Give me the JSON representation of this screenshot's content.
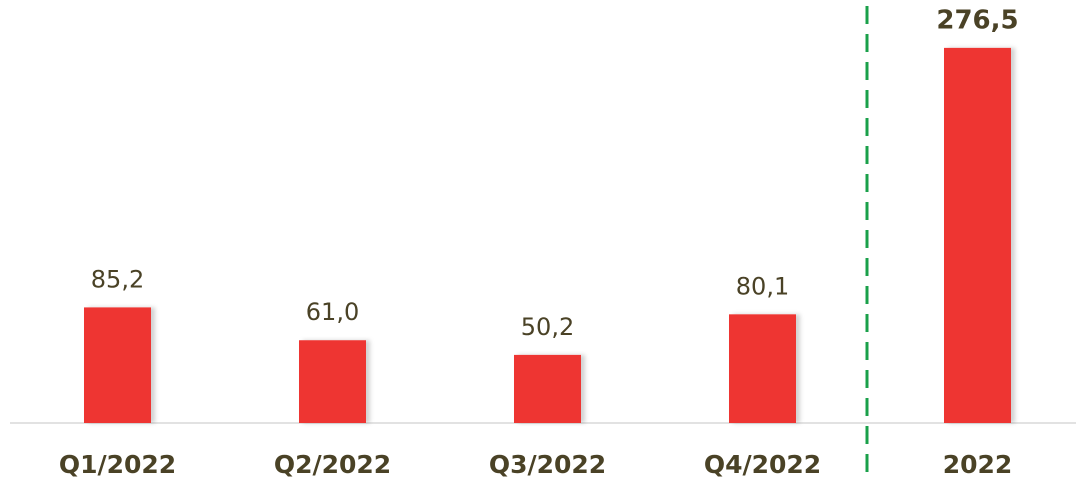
{
  "chart_data": {
    "type": "bar",
    "categories": [
      "Q1/2022",
      "Q2/2022",
      "Q3/2022",
      "Q4/2022",
      "2022"
    ],
    "values": [
      85.2,
      61.0,
      50.2,
      80.1,
      276.5
    ],
    "value_labels": [
      "85,2",
      "61,0",
      "50,2",
      "80,1",
      "276,5"
    ],
    "color": "#ee3430",
    "ylim": [
      0,
      300
    ]
  }
}
